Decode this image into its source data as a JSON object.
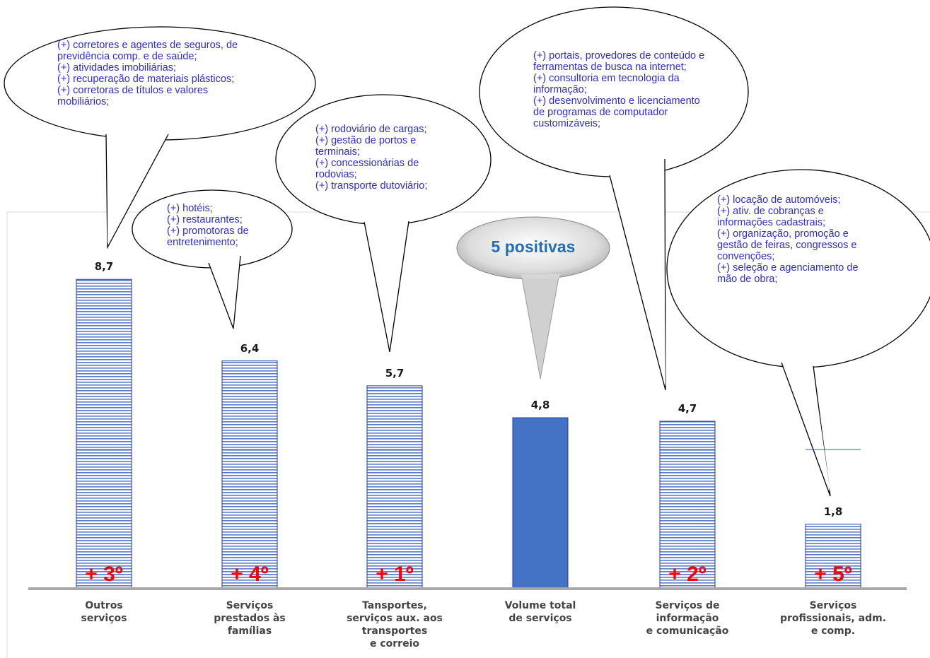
{
  "chart_data": {
    "type": "bar",
    "categories": [
      [
        "Outros",
        "serviços"
      ],
      [
        "Serviços",
        "prestados às",
        "famílias"
      ],
      [
        "Tansportes,",
        "serviços aux. aos",
        "transportes",
        "e correio"
      ],
      [
        "Volume total",
        "de serviços"
      ],
      [
        "Serviços de",
        "informação",
        "e comunicação"
      ],
      [
        "Serviços",
        "profissionais, adm.",
        "e comp."
      ]
    ],
    "values": [
      8.7,
      6.4,
      5.7,
      4.8,
      4.7,
      1.8
    ],
    "value_labels": [
      "8,7",
      "6,4",
      "5,7",
      "4,8",
      "4,7",
      "1,8"
    ],
    "rank_labels": [
      "+ 3º",
      "+ 4º",
      "+ 1º",
      "",
      "+ 2º",
      "+ 5º"
    ],
    "highlight_index": 3,
    "ylim": [
      0,
      9.5
    ],
    "grid": false,
    "colors": {
      "hatched_line": "#4a6fc4",
      "solid_bar": "#4472c4",
      "baseline": "#a6a6a6",
      "rank_text": "#ff0000",
      "bubble_text": "#2c2ccf",
      "summary_text": "#1e6fb8"
    }
  },
  "summary_bubble": "5 positivas",
  "annotations": [
    {
      "target": 0,
      "lines": [
        "(+) corretores e agentes de seguros, de",
        "previdência comp. e de saúde;",
        "(+) atividades imobiliárias;",
        "(+) recuperação de materiais plásticos;",
        "(+) corretoras de títulos e valores",
        "mobiliários;"
      ]
    },
    {
      "target": 1,
      "lines": [
        "(+) hotéis;",
        "(+) restaurantes;",
        "(+) promotoras de",
        "entretenimento;"
      ]
    },
    {
      "target": 2,
      "lines": [
        "(+) rodoviário de cargas;",
        "(+) gestão de portos e",
        "terminais;",
        "(+) concessionárias de",
        "rodovias;",
        "(+) transporte dutoviário;"
      ]
    },
    {
      "target": 4,
      "lines": [
        "(+) portais, provedores de conteúdo e",
        "ferramentas de busca na internet;",
        "(+) consultoria em tecnologia da",
        "informação;",
        "(+) desenvolvimento e licenciamento",
        "de programas de computador",
        "customizáveis;"
      ]
    },
    {
      "target": 5,
      "lines": [
        "(+) locação de automóveis;",
        "(+) ativ. de cobranças e",
        "informações cadastrais;",
        "(+) organização, promoção e",
        "gestão de feiras, congressos e",
        "convenções;",
        "(+) seleção e agenciamento de",
        "mão de obra;"
      ]
    }
  ]
}
